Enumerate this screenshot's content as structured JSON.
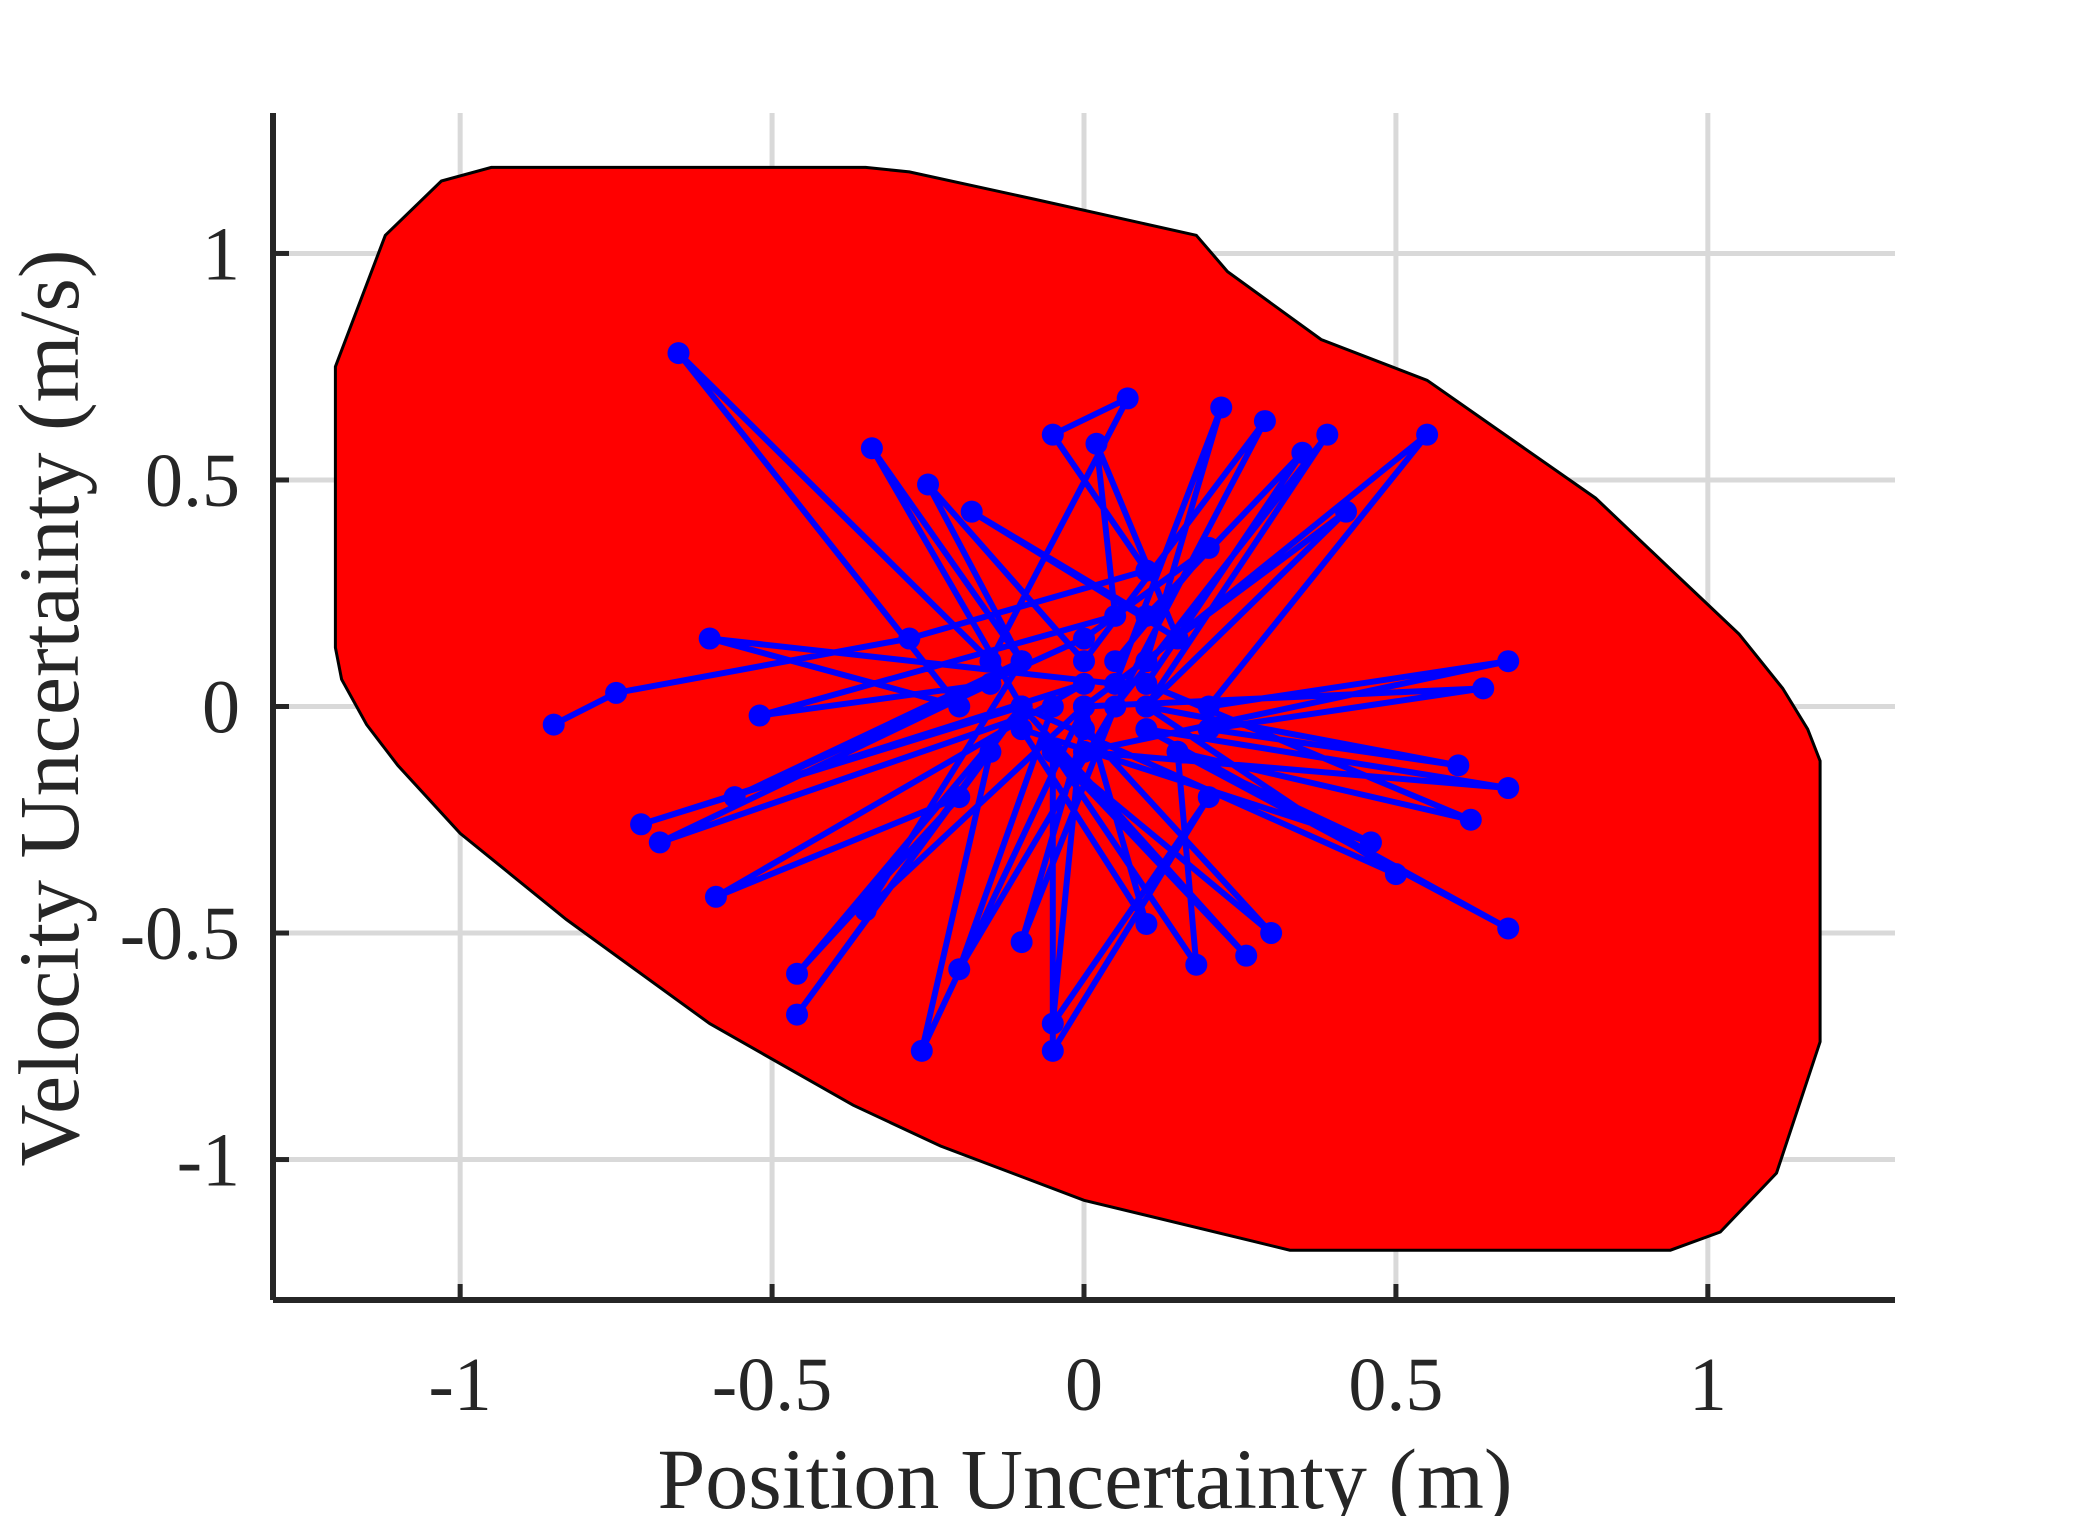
{
  "chart_data": {
    "type": "scatter",
    "title": "",
    "xlabel": "Position Uncertainty (m)",
    "ylabel": "Velocity Uncertainty (m/s)",
    "xlim": [
      -1.3,
      1.3
    ],
    "ylim": [
      -1.31,
      1.31
    ],
    "x_ticks": [
      -1,
      -0.5,
      0,
      0.5,
      1
    ],
    "x_tick_labels": [
      "-1",
      "-0.5",
      "0",
      "0.5",
      "1"
    ],
    "y_ticks": [
      -1,
      -0.5,
      0,
      0.5,
      1
    ],
    "y_tick_labels": [
      "-1",
      "-0.5",
      "0",
      "0.5",
      "1"
    ],
    "grid": true,
    "colors": {
      "region_fill": "#ff0000",
      "region_edge": "#000000",
      "trajectory": "#0000ff",
      "axis": "#262626",
      "grid": "#d9d9d9"
    },
    "series": [
      {
        "kind": "region",
        "polygon": [
          [
            -0.95,
            1.19
          ],
          [
            -0.35,
            1.19
          ],
          [
            -0.28,
            1.18
          ],
          [
            -0.08,
            1.12
          ],
          [
            0.18,
            1.04
          ],
          [
            0.23,
            0.96
          ],
          [
            0.38,
            0.81
          ],
          [
            0.55,
            0.72
          ],
          [
            0.82,
            0.46
          ],
          [
            0.95,
            0.29
          ],
          [
            1.05,
            0.16
          ],
          [
            1.12,
            0.04
          ],
          [
            1.16,
            -0.05
          ],
          [
            1.18,
            -0.12
          ],
          [
            1.18,
            -0.74
          ],
          [
            1.11,
            -1.03
          ],
          [
            1.02,
            -1.16
          ],
          [
            0.94,
            -1.2
          ],
          [
            0.33,
            -1.2
          ],
          [
            0.27,
            -1.18
          ],
          [
            0.0,
            -1.09
          ],
          [
            -0.23,
            -0.97
          ],
          [
            -0.37,
            -0.88
          ],
          [
            -0.6,
            -0.7
          ],
          [
            -0.83,
            -0.47
          ],
          [
            -1.0,
            -0.28
          ],
          [
            -1.1,
            -0.13
          ],
          [
            -1.15,
            -0.04
          ],
          [
            -1.19,
            0.06
          ],
          [
            -1.2,
            0.13
          ],
          [
            -1.2,
            0.75
          ],
          [
            -1.12,
            1.04
          ],
          [
            -1.03,
            1.16
          ]
        ]
      },
      {
        "kind": "trajectory",
        "points": [
          [
            -0.85,
            -0.04
          ],
          [
            -0.75,
            0.03
          ],
          [
            -0.28,
            0.15
          ],
          [
            0.1,
            0.3
          ],
          [
            -0.05,
            0.6
          ],
          [
            0.07,
            0.68
          ],
          [
            -0.15,
            0.1
          ],
          [
            -0.65,
            0.78
          ],
          [
            -0.2,
            0.0
          ],
          [
            -0.6,
            0.15
          ],
          [
            0.05,
            0.05
          ],
          [
            0.22,
            0.66
          ],
          [
            0.1,
            0.1
          ],
          [
            0.55,
            0.6
          ],
          [
            0.2,
            0.0
          ],
          [
            0.68,
            0.1
          ],
          [
            0.0,
            -0.1
          ],
          [
            0.68,
            -0.18
          ],
          [
            0.1,
            -0.05
          ],
          [
            0.68,
            -0.49
          ],
          [
            0.15,
            -0.1
          ],
          [
            0.18,
            -0.57
          ],
          [
            -0.05,
            -0.1
          ],
          [
            -0.05,
            -0.76
          ],
          [
            0.2,
            -0.2
          ],
          [
            -0.05,
            -0.7
          ],
          [
            0.0,
            0.0
          ],
          [
            -0.26,
            -0.76
          ],
          [
            -0.15,
            -0.1
          ],
          [
            -0.46,
            -0.68
          ],
          [
            -0.1,
            0.0
          ],
          [
            -0.71,
            -0.26
          ],
          [
            0.0,
            0.05
          ],
          [
            -0.59,
            -0.42
          ],
          [
            -0.2,
            -0.2
          ],
          [
            -0.46,
            -0.59
          ],
          [
            -0.1,
            0.0
          ],
          [
            -0.34,
            0.57
          ],
          [
            -0.1,
            0.1
          ],
          [
            -0.25,
            0.49
          ],
          [
            0.0,
            0.1
          ],
          [
            0.29,
            0.63
          ],
          [
            0.05,
            0.0
          ],
          [
            0.39,
            0.6
          ],
          [
            0.1,
            0.0
          ],
          [
            0.42,
            0.43
          ],
          [
            0.0,
            0.0
          ],
          [
            0.64,
            0.04
          ],
          [
            0.2,
            -0.05
          ],
          [
            0.6,
            -0.13
          ],
          [
            0.1,
            0.0
          ],
          [
            0.5,
            -0.37
          ],
          [
            -0.1,
            0.0
          ],
          [
            0.26,
            -0.55
          ],
          [
            -0.05,
            -0.1
          ],
          [
            0.3,
            -0.5
          ],
          [
            0.0,
            -0.05
          ],
          [
            -0.1,
            -0.52
          ],
          [
            0.05,
            0.0
          ],
          [
            -0.2,
            -0.58
          ],
          [
            -0.05,
            0.0
          ],
          [
            -0.68,
            -0.3
          ],
          [
            -0.15,
            0.05
          ],
          [
            -0.52,
            -0.02
          ],
          [
            0.05,
            0.2
          ],
          [
            0.02,
            0.58
          ],
          [
            0.15,
            0.15
          ],
          [
            -0.18,
            0.43
          ],
          [
            0.1,
            0.2
          ],
          [
            0.35,
            0.56
          ],
          [
            0.1,
            0.05
          ],
          [
            0.62,
            -0.25
          ],
          [
            0.15,
            -0.1
          ],
          [
            0.46,
            -0.3
          ],
          [
            -0.1,
            -0.05
          ],
          [
            0.1,
            -0.48
          ],
          [
            0.0,
            0.0
          ],
          [
            -0.35,
            -0.45
          ],
          [
            -0.1,
            0.1
          ],
          [
            -0.56,
            -0.2
          ],
          [
            0.0,
            0.15
          ],
          [
            0.2,
            0.35
          ],
          [
            0.05,
            0.1
          ]
        ]
      }
    ]
  }
}
